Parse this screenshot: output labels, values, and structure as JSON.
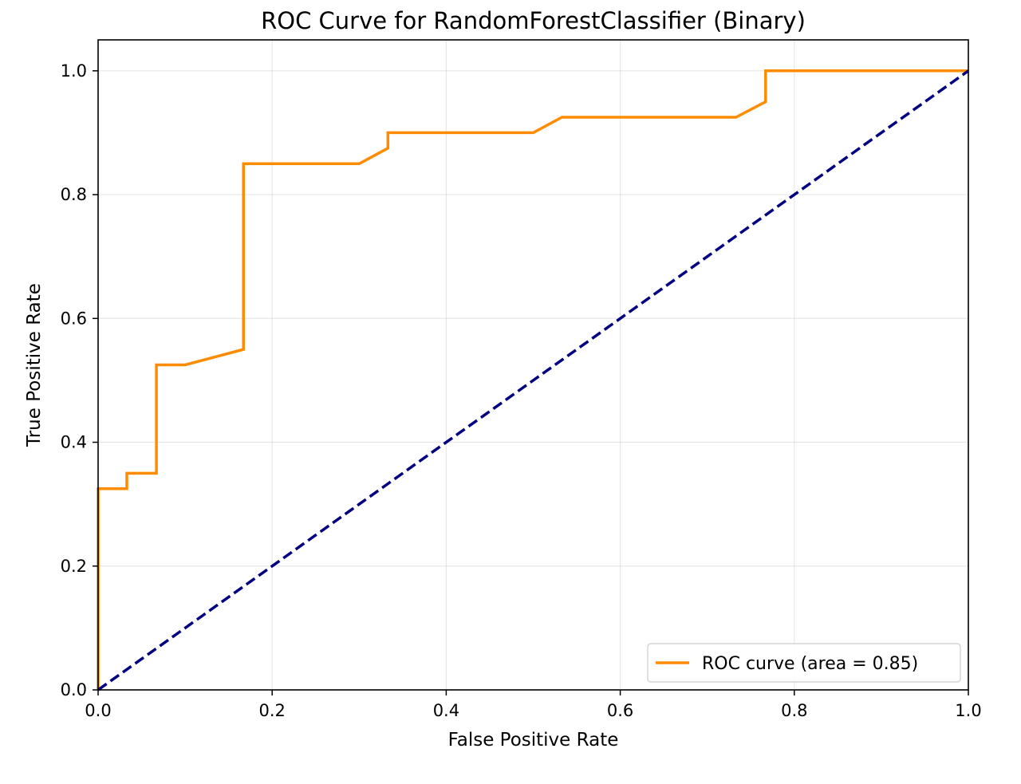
{
  "chart_data": {
    "type": "line",
    "title": "ROC Curve for RandomForestClassifier (Binary)",
    "xlabel": "False Positive Rate",
    "ylabel": "True Positive Rate",
    "xlim": [
      0.0,
      1.0
    ],
    "ylim": [
      0.0,
      1.05
    ],
    "xticks": [
      0.0,
      0.2,
      0.4,
      0.6,
      0.8,
      1.0
    ],
    "yticks": [
      0.0,
      0.2,
      0.4,
      0.6,
      0.8,
      1.0
    ],
    "xtick_labels": [
      "0.0",
      "0.2",
      "0.4",
      "0.6",
      "0.8",
      "1.0"
    ],
    "ytick_labels": [
      "0.0",
      "0.2",
      "0.4",
      "0.6",
      "0.8",
      "1.0"
    ],
    "grid": true,
    "legend_position": "lower-right",
    "series": [
      {
        "name": "ROC curve (area = 0.85)",
        "color": "#ff8c00",
        "style": "solid",
        "x": [
          0.0,
          0.0,
          0.033,
          0.033,
          0.067,
          0.067,
          0.1,
          0.167,
          0.167,
          0.3,
          0.333,
          0.333,
          0.5,
          0.533,
          0.733,
          0.767,
          0.767,
          1.0
        ],
        "y": [
          0.0,
          0.325,
          0.325,
          0.35,
          0.35,
          0.525,
          0.525,
          0.55,
          0.85,
          0.85,
          0.875,
          0.9,
          0.9,
          0.925,
          0.925,
          0.95,
          1.0,
          1.0
        ]
      },
      {
        "color": "#000080",
        "style": "dashed",
        "x": [
          0.0,
          1.0
        ],
        "y": [
          0.0,
          1.0
        ]
      }
    ]
  }
}
